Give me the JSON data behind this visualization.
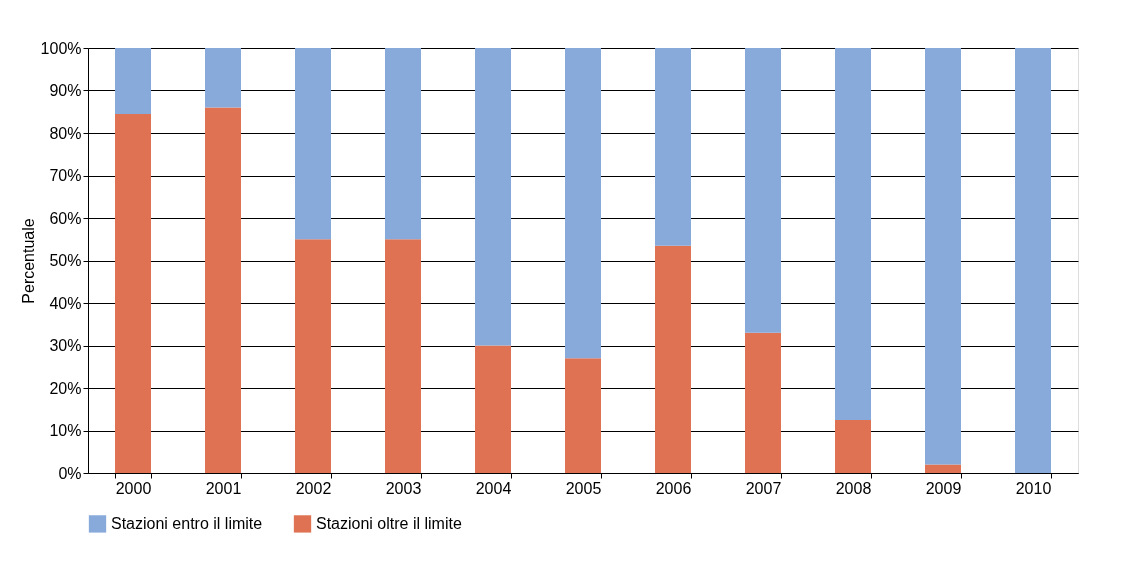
{
  "chart_data": {
    "type": "bar",
    "stacked": true,
    "ylabel": "Percentuale",
    "categories": [
      "2000",
      "2001",
      "2002",
      "2003",
      "2004",
      "2005",
      "2006",
      "2007",
      "2008",
      "2009",
      "2010"
    ],
    "series": [
      {
        "name": "Stazioni oltre il limite",
        "color": "#e07254",
        "values": [
          84.5,
          86,
          55,
          55,
          30,
          27,
          53.5,
          33,
          12.5,
          2,
          0
        ]
      },
      {
        "name": "Stazioni entro il limite",
        "color": "#87aadb",
        "values": [
          15.5,
          14,
          45,
          45,
          70,
          73,
          46.5,
          67,
          87.5,
          98,
          100
        ]
      }
    ],
    "ylim": [
      0,
      100
    ],
    "yticks": [
      {
        "value": 0,
        "label": "0%"
      },
      {
        "value": 10,
        "label": "10%"
      },
      {
        "value": 20,
        "label": "20%"
      },
      {
        "value": 30,
        "label": "30%"
      },
      {
        "value": 40,
        "label": "40%"
      },
      {
        "value": 50,
        "label": "50%"
      },
      {
        "value": 60,
        "label": "60%"
      },
      {
        "value": 70,
        "label": "70%"
      },
      {
        "value": 80,
        "label": "80%"
      },
      {
        "value": 90,
        "label": "90%"
      },
      {
        "value": 100,
        "label": "100%"
      }
    ],
    "grid": "y",
    "legend": "bottom"
  }
}
